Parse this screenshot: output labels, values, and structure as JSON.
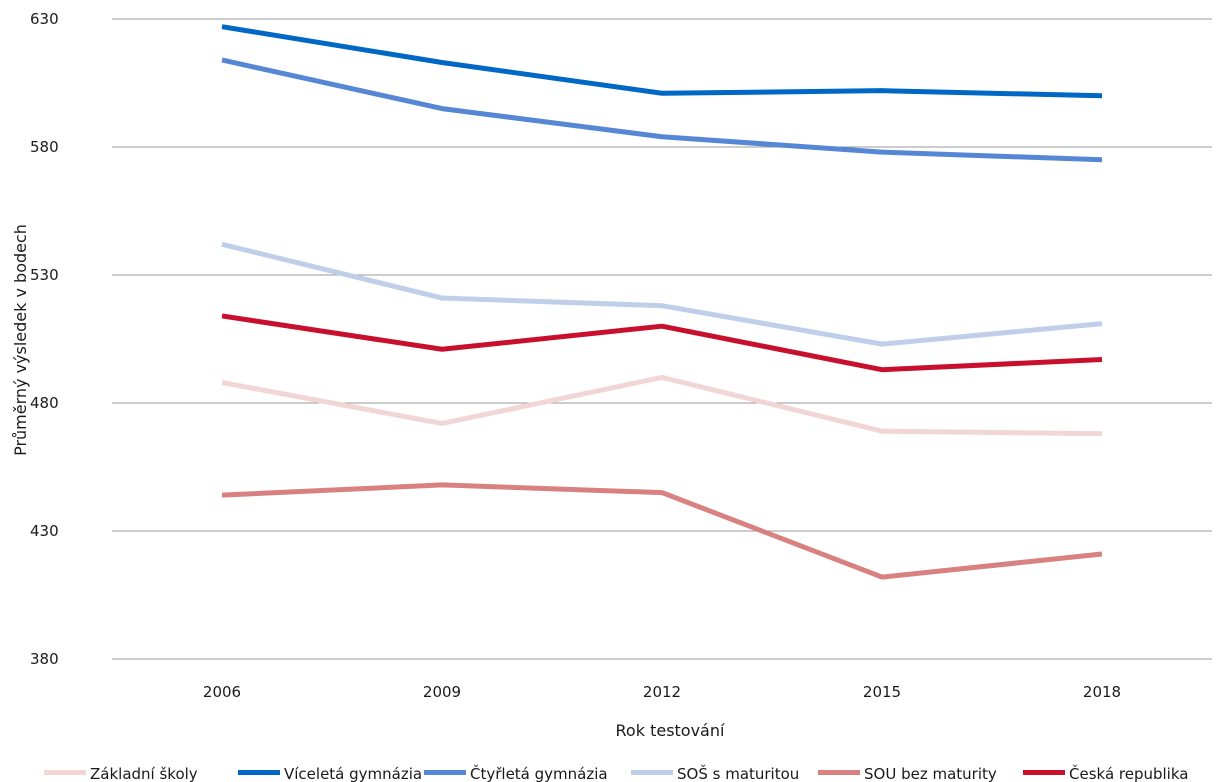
{
  "chart_data": {
    "type": "line",
    "xlabel": "Rok testování",
    "ylabel": "Průměrný výsledek v bodech",
    "categories": [
      "2006",
      "2009",
      "2012",
      "2015",
      "2018"
    ],
    "ylim": [
      380,
      630
    ],
    "yticks": [
      380,
      430,
      480,
      530,
      580,
      630
    ],
    "grid": true,
    "legend_position": "bottom",
    "series": [
      {
        "name": "Základní školy",
        "color": "#f2d6d6",
        "values": [
          488,
          472,
          490,
          469,
          468
        ]
      },
      {
        "name": "Víceletá gymnázia",
        "color": "#0067c5",
        "values": [
          627,
          613,
          601,
          602,
          600
        ]
      },
      {
        "name": "Čtyřletá gymnázia",
        "color": "#5587d4",
        "values": [
          614,
          595,
          584,
          578,
          575
        ]
      },
      {
        "name": "SOŠ s maturitou",
        "color": "#bfcfea",
        "values": [
          542,
          521,
          518,
          503,
          511
        ]
      },
      {
        "name": "SOU bez maturity",
        "color": "#d98080",
        "values": [
          444,
          448,
          445,
          412,
          421
        ]
      },
      {
        "name": "Česká republika",
        "color": "#c8102e",
        "values": [
          514,
          501,
          510,
          493,
          497
        ]
      }
    ]
  }
}
